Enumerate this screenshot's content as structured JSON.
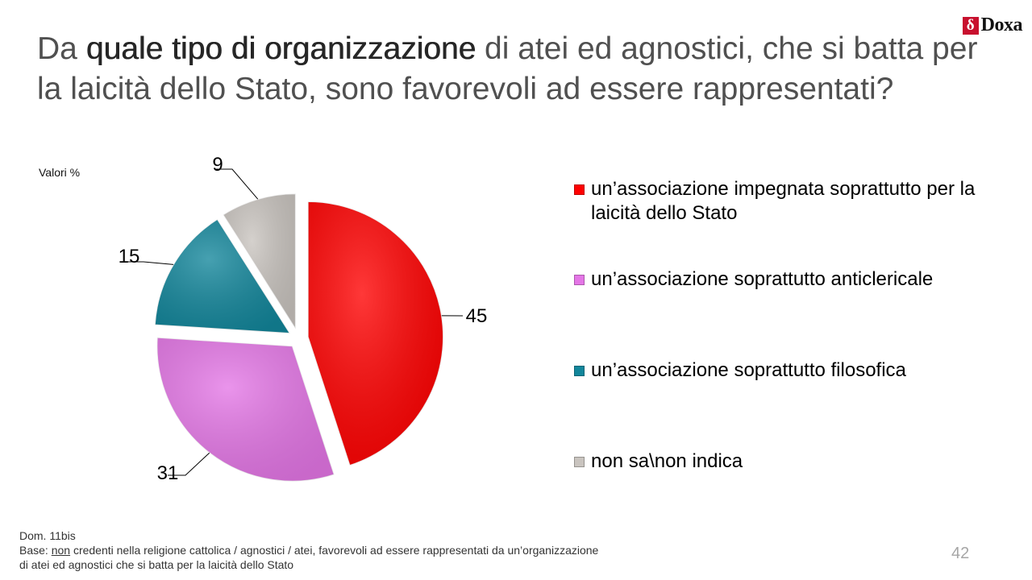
{
  "brand": {
    "logo_mark": "δ",
    "logo_text": "Doxa"
  },
  "title": {
    "part1": "Da ",
    "bold": "quale tipo di organizzazione",
    "part2": " di atei ed agnostici, che si batta per la laicità dello Stato, sono favorevoli ad essere rappresentati?"
  },
  "units_label": "Valori %",
  "chart_data": {
    "type": "pie",
    "title": "",
    "slices": [
      {
        "label": "un’associazione impegnata soprattutto per la laicità dello Stato",
        "value": 45,
        "color": "#ff0000"
      },
      {
        "label": "un’associazione soprattutto anticlericale",
        "value": 31,
        "color": "#e476e6"
      },
      {
        "label": "un’associazione soprattutto filosofica",
        "value": 15,
        "color": "#12869b"
      },
      {
        "label": "non sa\\non indica",
        "value": 9,
        "color": "#c9c4bf"
      }
    ],
    "exploded": true,
    "legend_position": "right"
  },
  "footer": {
    "line1": "Dom. 11bis",
    "base_label": "Base: ",
    "base_underlined": "non",
    "base_rest": " credenti nella religione cattolica / agnostici / atei, favorevoli ad essere rappresentati da un’organizzazione di atei ed agnostici che si batta per la laicità dello Stato"
  },
  "page_number": "42"
}
